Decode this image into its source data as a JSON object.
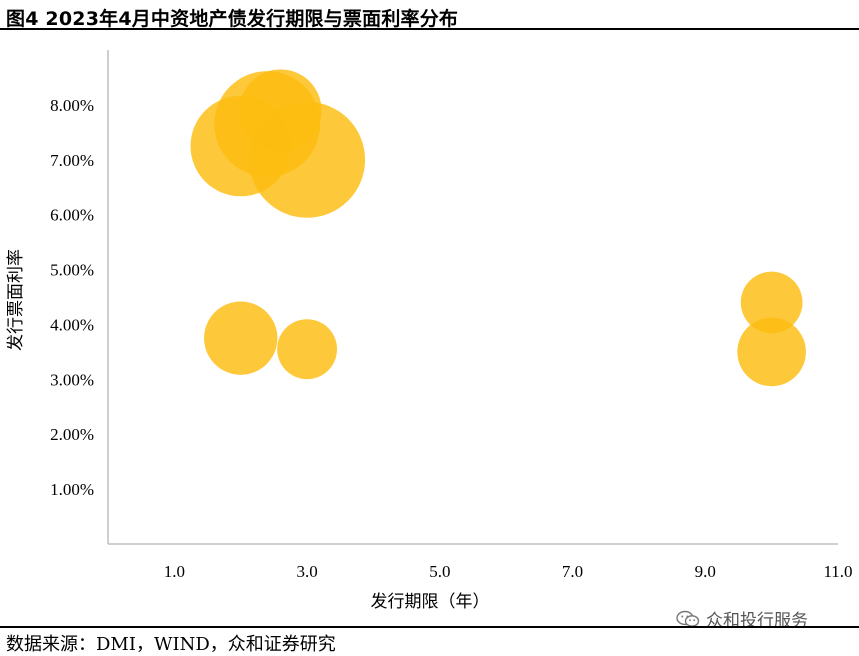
{
  "title": "图4 2023年4月中资地产债发行期限与票面利率分布",
  "source": "数据来源：DMI，WIND，众和证券研究",
  "watermark": "众和投行服务",
  "colors": {
    "bubble": "#FDBD10",
    "axis": "#BFBFBF"
  },
  "chart_data": {
    "type": "scatter",
    "xlabel": "发行期限（年）",
    "ylabel": "发行票面利率",
    "xlim": [
      0,
      11
    ],
    "ylim": [
      0,
      9
    ],
    "xticks": [
      1.0,
      3.0,
      5.0,
      7.0,
      9.0,
      11.0
    ],
    "xtick_labels": [
      "1.0",
      "3.0",
      "5.0",
      "7.0",
      "9.0",
      "11.0"
    ],
    "yticks": [
      1,
      2,
      3,
      4,
      5,
      6,
      7,
      8
    ],
    "ytick_labels": [
      "1.00%",
      "2.00%",
      "3.00%",
      "4.00%",
      "5.00%",
      "6.00%",
      "7.00%",
      "8.00%"
    ],
    "grid": false,
    "points": [
      {
        "x": 3.0,
        "y": 7.0,
        "size": 60
      },
      {
        "x": 2.0,
        "y": 7.25,
        "size": 45
      },
      {
        "x": 2.4,
        "y": 7.65,
        "size": 50
      },
      {
        "x": 2.6,
        "y": 7.9,
        "size": 30
      },
      {
        "x": 2.0,
        "y": 3.75,
        "size": 24
      },
      {
        "x": 3.0,
        "y": 3.55,
        "size": 16
      },
      {
        "x": 10.0,
        "y": 4.4,
        "size": 17
      },
      {
        "x": 10.0,
        "y": 3.5,
        "size": 21
      }
    ]
  }
}
